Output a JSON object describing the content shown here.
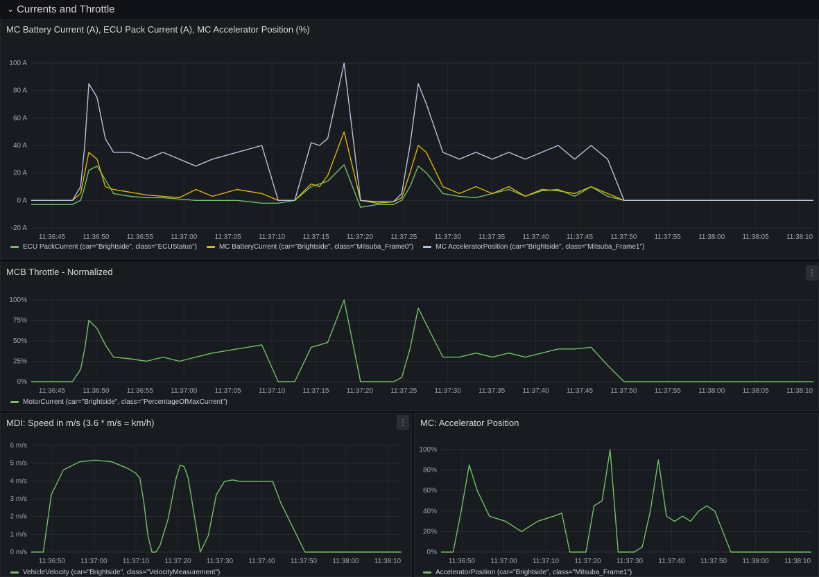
{
  "row": {
    "chevron": "chevron-down-icon",
    "title": "Currents and Throttle"
  },
  "colors": {
    "green": "#73bf69",
    "yellow": "#e0b400",
    "blue": "#b4c3dc"
  },
  "panels": [
    {
      "id": "p1",
      "title": "MC Battery Current (A), ECU Pack Current (A), MC Accelerator Position (%)",
      "legend": [
        "ECU PackCurrent (car=\"Brightside\", class=\"ECUStatus\")",
        "MC BatteryCurrent (car=\"Brightside\", class=\"Mitsuba_Frame0\")",
        "MC AcceleratorPosition (car=\"Brightside\", class=\"Mitsuba_Frame1\")"
      ]
    },
    {
      "id": "p2",
      "title": "MCB Throttle - Normalized",
      "legend": [
        "MotorCurrent (car=\"Brightside\", class=\"PercentageOfMaxCurrent\")"
      ]
    },
    {
      "id": "p3",
      "title": "MDI: Speed in m/s (3.6 * m/s = km/h)",
      "legend": [
        "VehicleVelocity (car=\"Brightside\", class=\"VelocityMeasurement\")"
      ]
    },
    {
      "id": "p4",
      "title": "MC: Accelerator Position",
      "legend": [
        "AcceleratorPosition (car=\"Brightside\", class=\"Mitsuba_Frame1\")"
      ]
    }
  ],
  "chart_data": [
    {
      "type": "line",
      "title": "MC Battery Current (A), ECU Pack Current (A), MC Accelerator Position (%)",
      "x_ticks": [
        "11:36:45",
        "11:36:50",
        "11:36:55",
        "11:37:00",
        "11:37:05",
        "11:37:10",
        "11:37:15",
        "11:37:20",
        "11:37:25",
        "11:37:30",
        "11:37:35",
        "11:37:40",
        "11:37:45",
        "11:37:50",
        "11:37:55",
        "11:38:00",
        "11:38:05",
        "11:38:10"
      ],
      "y_ticks": [
        "-20 A",
        "0 A",
        "20 A",
        "40 A",
        "60 A",
        "80 A",
        "100 A"
      ],
      "ylim": [
        -20,
        100
      ],
      "x": [
        0,
        5,
        6,
        6.5,
        7,
        8,
        9,
        10,
        12,
        14,
        16,
        18,
        20,
        22,
        25,
        28,
        30,
        32,
        34,
        35,
        36,
        38,
        40,
        42,
        44,
        45,
        46,
        47,
        48,
        50,
        52,
        54,
        56,
        58,
        60,
        62,
        64,
        66,
        68,
        70,
        72,
        74,
        76,
        78,
        80,
        85,
        90,
        95
      ],
      "series": [
        {
          "name": "ECU PackCurrent (car=\"Brightside\", class=\"ECUStatus\")",
          "color": "green",
          "values": [
            -3,
            -3,
            0,
            10,
            22,
            25,
            15,
            5,
            3,
            2,
            2,
            1,
            0,
            0,
            0,
            -2,
            -2,
            0,
            10,
            12,
            14,
            26,
            -5,
            -3,
            -3,
            0,
            10,
            25,
            20,
            5,
            3,
            2,
            5,
            8,
            3,
            7,
            8,
            3,
            10,
            3,
            0,
            0,
            0,
            0,
            0,
            0,
            0,
            0
          ]
        },
        {
          "name": "MC BatteryCurrent (car=\"Brightside\", class=\"Mitsuba_Frame0\")",
          "color": "yellow",
          "values": [
            0,
            0,
            5,
            20,
            35,
            30,
            10,
            8,
            6,
            4,
            3,
            2,
            8,
            3,
            8,
            5,
            0,
            0,
            12,
            10,
            18,
            50,
            0,
            -2,
            -1,
            2,
            20,
            40,
            35,
            10,
            5,
            10,
            5,
            10,
            3,
            8,
            7,
            5,
            10,
            5,
            0,
            0,
            0,
            0,
            0,
            0,
            0,
            0
          ]
        },
        {
          "name": "MC AcceleratorPosition (car=\"Brightside\", class=\"Mitsuba_Frame1\")",
          "color": "blue",
          "values": [
            0,
            0,
            10,
            40,
            85,
            75,
            45,
            35,
            35,
            30,
            35,
            30,
            25,
            30,
            35,
            40,
            0,
            0,
            42,
            40,
            45,
            100,
            0,
            -1,
            -1,
            5,
            40,
            85,
            70,
            35,
            30,
            35,
            30,
            35,
            30,
            35,
            40,
            30,
            40,
            30,
            0,
            0,
            0,
            0,
            0,
            0,
            0,
            0
          ]
        }
      ]
    },
    {
      "type": "line",
      "title": "MCB Throttle - Normalized",
      "x_ticks": [
        "11:36:45",
        "11:36:50",
        "11:36:55",
        "11:37:00",
        "11:37:05",
        "11:37:10",
        "11:37:15",
        "11:37:20",
        "11:37:25",
        "11:37:30",
        "11:37:35",
        "11:37:40",
        "11:37:45",
        "11:37:50",
        "11:37:55",
        "11:38:00",
        "11:38:05",
        "11:38:10"
      ],
      "y_ticks": [
        "0%",
        "25%",
        "50%",
        "75%",
        "100%"
      ],
      "ylim": [
        0,
        100
      ],
      "x": [
        0,
        5,
        6,
        6.5,
        7,
        8,
        9,
        10,
        12,
        14,
        16,
        18,
        20,
        22,
        25,
        28,
        30,
        32,
        34,
        35,
        36,
        38,
        40,
        42,
        44,
        45,
        46,
        47,
        48,
        50,
        52,
        54,
        56,
        58,
        60,
        62,
        64,
        66,
        68,
        70,
        72,
        74,
        76,
        78,
        80,
        85,
        90,
        95
      ],
      "series": [
        {
          "name": "MotorCurrent (car=\"Brightside\", class=\"PercentageOfMaxCurrent\")",
          "color": "green",
          "values": [
            0,
            0,
            15,
            40,
            75,
            65,
            45,
            30,
            28,
            25,
            30,
            25,
            30,
            35,
            40,
            45,
            0,
            0,
            42,
            45,
            48,
            100,
            0,
            0,
            0,
            5,
            40,
            90,
            70,
            30,
            30,
            35,
            30,
            35,
            30,
            35,
            40,
            40,
            42,
            20,
            0,
            0,
            0,
            0,
            0,
            0,
            0,
            0
          ]
        }
      ]
    },
    {
      "type": "line",
      "title": "MDI: Speed in m/s (3.6 * m/s = km/h)",
      "x_ticks": [
        "11:36:50",
        "11:37:00",
        "11:37:10",
        "11:37:20",
        "11:37:30",
        "11:37:40",
        "11:37:50",
        "11:38:00",
        "11:38:10"
      ],
      "y_ticks": [
        "0 m/s",
        "1 m/s",
        "2 m/s",
        "3 m/s",
        "4 m/s",
        "5 m/s",
        "6 m/s"
      ],
      "ylim": [
        0,
        6.5
      ],
      "x": [
        0,
        3,
        5,
        8,
        12,
        16,
        20,
        24,
        26,
        27,
        28,
        29,
        30,
        31,
        32,
        34,
        36,
        37,
        38,
        39,
        40,
        42,
        44,
        46,
        48,
        50,
        52,
        54,
        55,
        56,
        58,
        60,
        62,
        64,
        66,
        68,
        70,
        72,
        74,
        76,
        78,
        80,
        82,
        84,
        86,
        88,
        90,
        92
      ],
      "series": [
        {
          "name": "VehicleVelocity (car=\"Brightside\", class=\"VelocityMeasurement\")",
          "color": "green",
          "values": [
            0,
            0,
            3.5,
            5,
            5.5,
            5.6,
            5.5,
            5.1,
            4.8,
            4.5,
            3,
            1,
            0,
            0,
            0.4,
            2,
            4.5,
            5.3,
            5.2,
            4.5,
            3,
            0,
            1,
            3.5,
            4.3,
            4.4,
            4.3,
            4.3,
            4.3,
            4.3,
            4.3,
            4.3,
            3,
            2,
            1,
            0,
            0,
            0,
            0,
            0,
            0,
            0,
            0,
            0,
            0,
            0,
            0,
            0
          ]
        }
      ]
    },
    {
      "type": "line",
      "title": "MC: Accelerator Position",
      "x_ticks": [
        "11:36:50",
        "11:37:00",
        "11:37:10",
        "11:37:20",
        "11:37:30",
        "11:37:40",
        "11:37:50",
        "11:38:00",
        "11:38:10"
      ],
      "y_ticks": [
        "0%",
        "20%",
        "40%",
        "60%",
        "80%",
        "100%"
      ],
      "ylim": [
        0,
        100
      ],
      "x": [
        0,
        3,
        5,
        7,
        9,
        12,
        16,
        20,
        24,
        28,
        30,
        32,
        34,
        36,
        38,
        40,
        42,
        44,
        46,
        48,
        50,
        52,
        54,
        56,
        58,
        60,
        62,
        64,
        66,
        68,
        70,
        72,
        74,
        76,
        78,
        80,
        82,
        84,
        86,
        88,
        90,
        92
      ],
      "series": [
        {
          "name": "AcceleratorPosition (car=\"Brightside\", class=\"Mitsuba_Frame1\")",
          "color": "green",
          "values": [
            0,
            0,
            40,
            85,
            60,
            35,
            30,
            20,
            30,
            35,
            38,
            0,
            0,
            0,
            45,
            50,
            100,
            0,
            0,
            0,
            5,
            40,
            90,
            35,
            30,
            35,
            30,
            40,
            45,
            40,
            20,
            0,
            0,
            0,
            0,
            0,
            0,
            0,
            0,
            0,
            0,
            0
          ]
        }
      ]
    }
  ]
}
